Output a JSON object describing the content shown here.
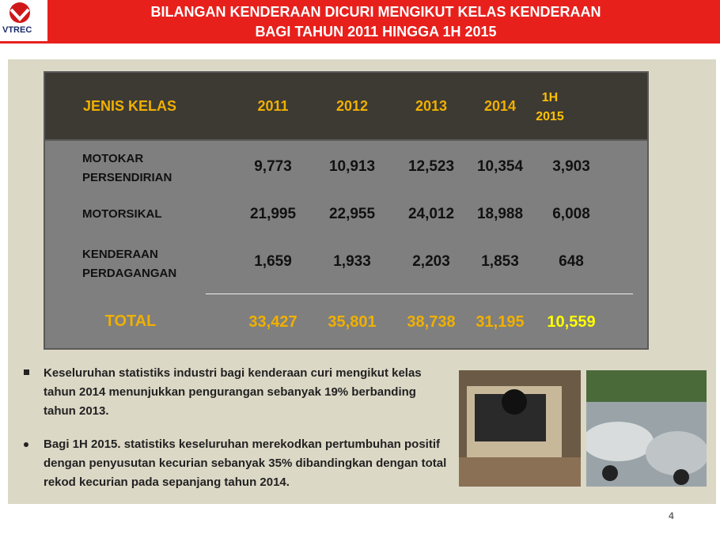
{
  "header": {
    "logo": "VTREC",
    "title": [
      "BILANGAN KENDERAAN DICURI MENGIKUT KELAS KENDERAAN",
      "BAGI TAHUN 2011 HINGGA 1H 2015"
    ]
  },
  "table": {
    "columns": [
      "JENIS KELAS",
      "2011",
      "2012",
      "2013",
      "2014",
      "1H 2015"
    ],
    "rows": [
      [
        "MOTOKAR PERSENDIRIAN",
        "9,773",
        "10,913",
        "12,523",
        "10,354",
        "3,903"
      ],
      [
        "MOTORSIKAL",
        "21,995",
        "22,955",
        "24,012",
        "18,988",
        "6,008"
      ],
      [
        "KENDERAAN PERDAGANGAN",
        "1,659",
        "1,933",
        "2,203",
        "1,853",
        "648"
      ]
    ],
    "total": [
      "TOTAL",
      "33,427",
      "35,801",
      "38,738",
      "31,195",
      "10,559"
    ]
  },
  "bullets": [
    "Keseluruhan statistiks industri bagi kenderaan curi  mengikut kelas tahun 2014 menunjukkan pengurangan sebanyak 19% berbanding tahun 2013.",
    "Bagi 1H 2015. statistiks keseluruhan merekodkan pertumbuhan positif  dengan penyusutan kecurian sebanyak 35% dibandingkan dengan total rekod kecurian pada sepanjang tahun 2014."
  ],
  "page_number": "4"
}
